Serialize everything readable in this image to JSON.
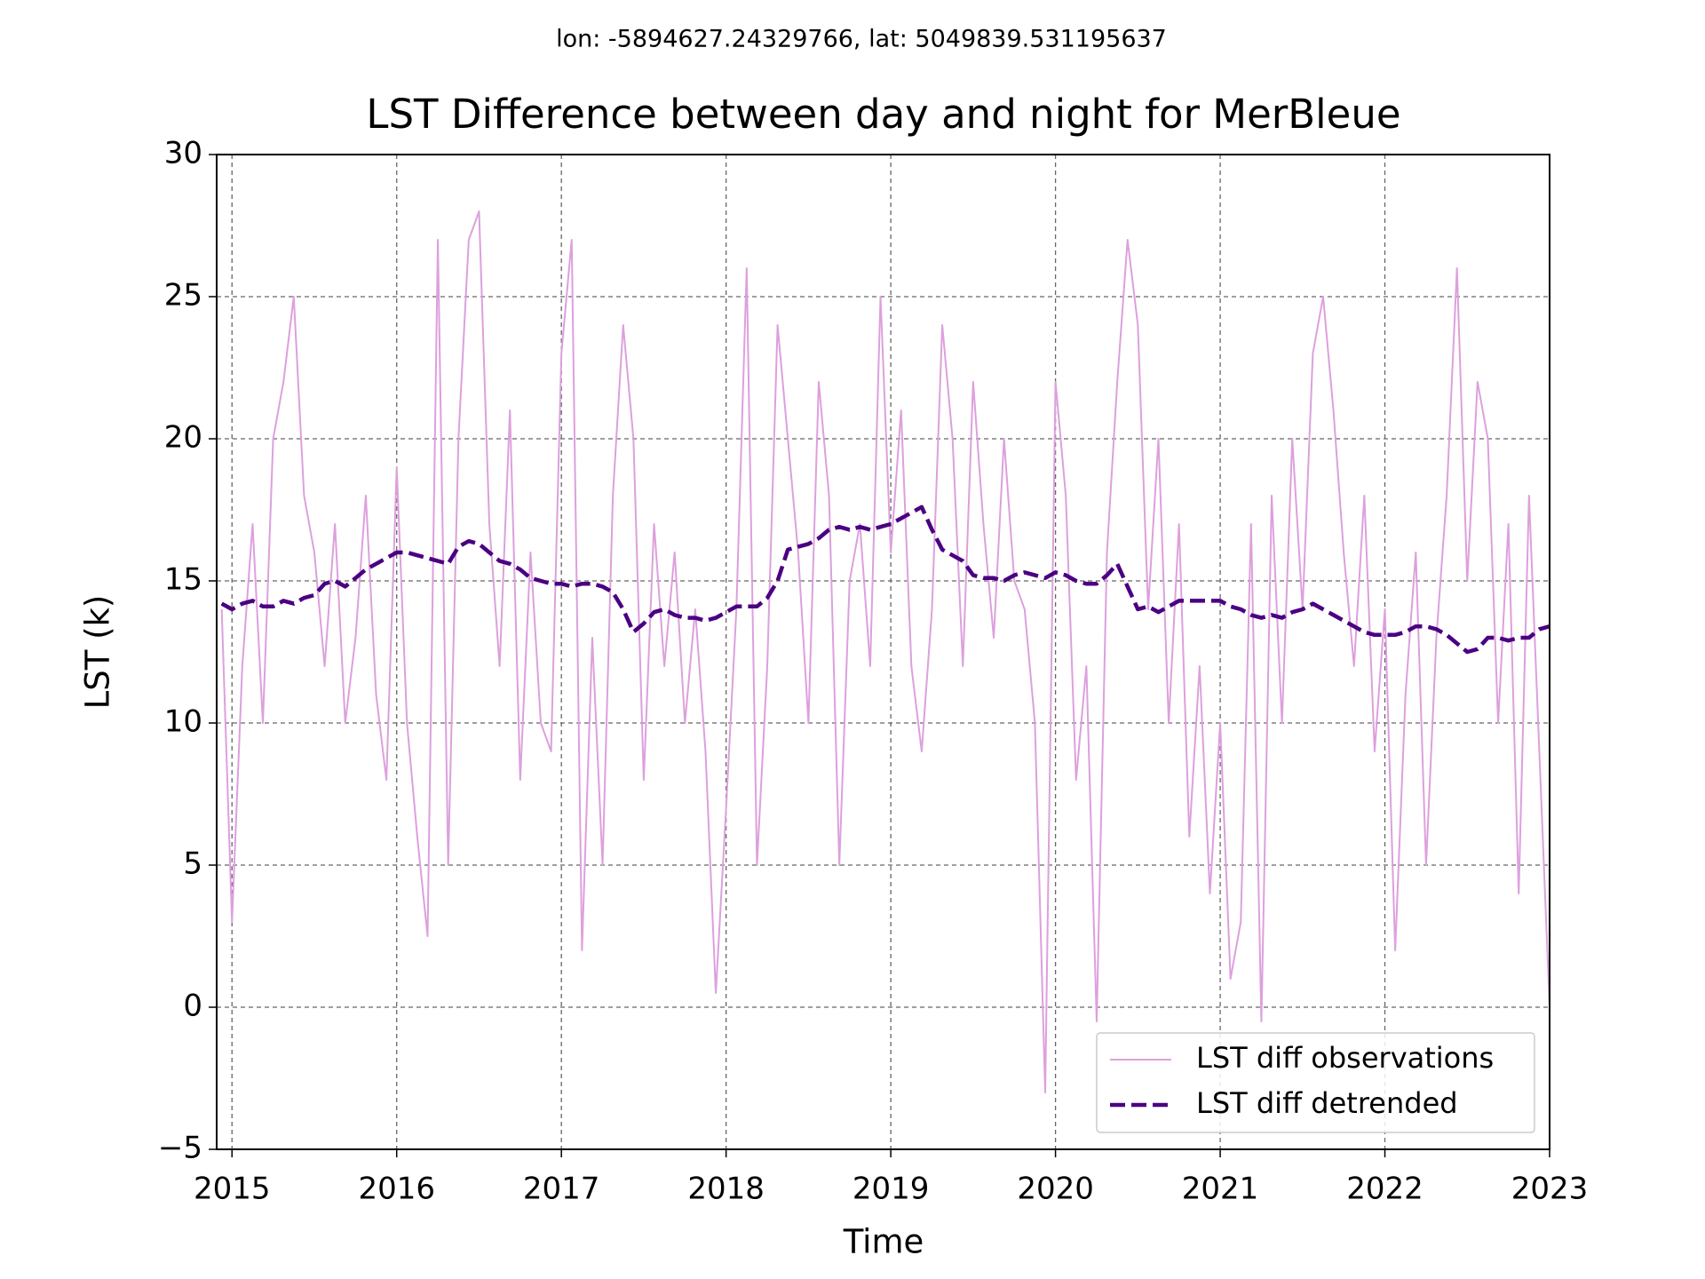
{
  "chart_data": {
    "type": "line",
    "subtitle": "lon: -5894627.24329766, lat: 5049839.531195637",
    "title": "LST Difference between day and night for MerBleue",
    "xlabel": "Time",
    "ylabel": "LST (k)",
    "xlim": [
      2014.907,
      2023
    ],
    "ylim": [
      -5,
      30
    ],
    "xticks": [
      2015,
      2016,
      2017,
      2018,
      2019,
      2020,
      2021,
      2022,
      2023
    ],
    "yticks": [
      {
        "value": -5,
        "label": "−5"
      },
      0,
      5,
      10,
      15,
      20,
      25,
      30
    ],
    "grid": true,
    "legend": "lower right",
    "x": [
      2014.9375,
      2015,
      2015.0625,
      2015.125,
      2015.1875,
      2015.25,
      2015.3125,
      2015.375,
      2015.4375,
      2015.5,
      2015.5625,
      2015.625,
      2015.6875,
      2015.75,
      2015.8125,
      2015.875,
      2015.9375,
      2016,
      2016.0625,
      2016.125,
      2016.1875,
      2016.25,
      2016.3125,
      2016.375,
      2016.4375,
      2016.5,
      2016.5625,
      2016.625,
      2016.6875,
      2016.75,
      2016.8125,
      2016.875,
      2016.9375,
      2017,
      2017.0625,
      2017.125,
      2017.1875,
      2017.25,
      2017.3125,
      2017.375,
      2017.4375,
      2017.5,
      2017.5625,
      2017.625,
      2017.6875,
      2017.75,
      2017.8125,
      2017.875,
      2017.9375,
      2018,
      2018.0625,
      2018.125,
      2018.1875,
      2018.25,
      2018.3125,
      2018.375,
      2018.4375,
      2018.5,
      2018.5625,
      2018.625,
      2018.6875,
      2018.75,
      2018.8125,
      2018.875,
      2018.9375,
      2019,
      2019.0625,
      2019.125,
      2019.1875,
      2019.25,
      2019.3125,
      2019.375,
      2019.4375,
      2019.5,
      2019.5625,
      2019.625,
      2019.6875,
      2019.75,
      2019.8125,
      2019.875,
      2019.9375,
      2020,
      2020.0625,
      2020.125,
      2020.1875,
      2020.25,
      2020.3125,
      2020.375,
      2020.4375,
      2020.5,
      2020.5625,
      2020.625,
      2020.6875,
      2020.75,
      2020.8125,
      2020.875,
      2020.9375,
      2021,
      2021.0625,
      2021.125,
      2021.1875,
      2021.25,
      2021.3125,
      2021.375,
      2021.4375,
      2021.5,
      2021.5625,
      2021.625,
      2021.6875,
      2021.75,
      2021.8125,
      2021.875,
      2021.9375,
      2022,
      2022.0625,
      2022.125,
      2022.1875,
      2022.25,
      2022.3125,
      2022.375,
      2022.4375,
      2022.5,
      2022.5625,
      2022.625,
      2022.6875,
      2022.75,
      2022.8125,
      2022.875,
      2022.9375,
      2023
    ],
    "series": [
      {
        "name": "LST diff observations",
        "color": "#dda0dd",
        "dash": false,
        "values": [
          14,
          3,
          12,
          17,
          10,
          20,
          22,
          25,
          18,
          16,
          12,
          17,
          10,
          13,
          18,
          11,
          8,
          19,
          10,
          6,
          2.5,
          27,
          5,
          20,
          27,
          28,
          17,
          12,
          21,
          8,
          16,
          10,
          9,
          23,
          27,
          2,
          13,
          5,
          18,
          24,
          20,
          8,
          17,
          12,
          16,
          10,
          14,
          9,
          0.5,
          7,
          14,
          26,
          5,
          12,
          24,
          20,
          16,
          10,
          22,
          18,
          5,
          15,
          17,
          12,
          25,
          16,
          21,
          12,
          9,
          14,
          24,
          20,
          12,
          22,
          17,
          13,
          20,
          15,
          14,
          10,
          -3,
          22,
          18,
          8,
          12,
          -0.5,
          16,
          22,
          27,
          24,
          14,
          20,
          10,
          17,
          6,
          12,
          4,
          10,
          1,
          3,
          17,
          -0.5,
          18,
          10,
          20,
          14,
          23,
          25,
          21,
          16,
          12,
          18,
          9,
          14,
          2,
          11,
          16,
          5,
          13,
          18,
          26,
          15,
          22,
          20,
          10,
          17,
          4,
          18,
          9,
          0
        ]
      },
      {
        "name": "LST diff detrended",
        "color": "#4b0082",
        "dash": true,
        "values": [
          14.2,
          14.0,
          14.2,
          14.3,
          14.1,
          14.1,
          14.3,
          14.2,
          14.4,
          14.5,
          14.9,
          15.0,
          14.8,
          15.1,
          15.4,
          15.6,
          15.8,
          16.0,
          16.0,
          15.9,
          15.8,
          15.7,
          15.6,
          16.2,
          16.4,
          16.3,
          16.0,
          15.7,
          15.6,
          15.4,
          15.1,
          15.0,
          14.9,
          14.9,
          14.8,
          14.9,
          14.9,
          14.8,
          14.6,
          14.0,
          13.2,
          13.5,
          13.9,
          14.0,
          13.8,
          13.7,
          13.7,
          13.6,
          13.7,
          13.9,
          14.1,
          14.1,
          14.1,
          14.4,
          15.0,
          16.1,
          16.2,
          16.3,
          16.5,
          16.8,
          16.9,
          16.8,
          16.9,
          16.8,
          16.9,
          17.0,
          17.2,
          17.4,
          17.6,
          16.8,
          16.1,
          15.9,
          15.7,
          15.2,
          15.1,
          15.1,
          15.0,
          15.2,
          15.3,
          15.2,
          15.1,
          15.3,
          15.2,
          15.0,
          14.9,
          14.9,
          15.2,
          15.6,
          14.8,
          14.0,
          14.1,
          13.9,
          14.1,
          14.3,
          14.3,
          14.3,
          14.3,
          14.3,
          14.1,
          14.0,
          13.8,
          13.7,
          13.8,
          13.7,
          13.9,
          14.0,
          14.2,
          14.0,
          13.8,
          13.6,
          13.4,
          13.2,
          13.1,
          13.1,
          13.1,
          13.2,
          13.4,
          13.4,
          13.3,
          13.1,
          12.8,
          12.5,
          12.6,
          13.0,
          13.0,
          12.9,
          13.0,
          13.0,
          13.3,
          13.4
        ]
      }
    ]
  }
}
